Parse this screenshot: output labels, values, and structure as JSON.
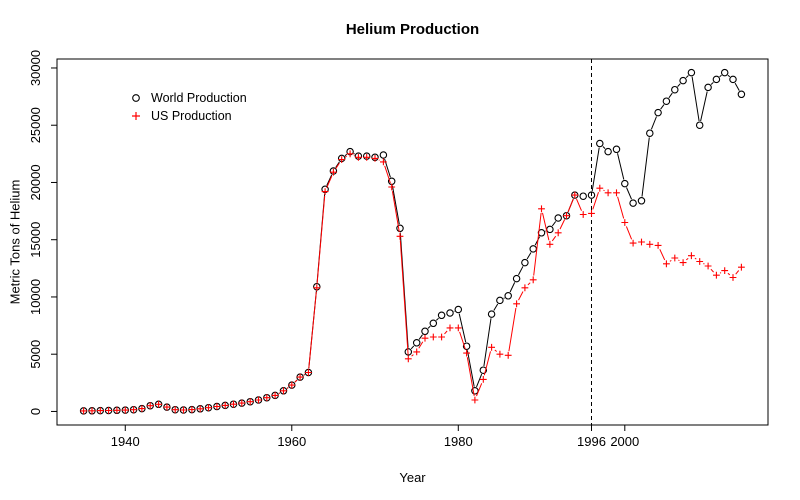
{
  "title": "Helium Production",
  "axes": {
    "x_label": "Year",
    "y_label": "Metric Tons of Helium",
    "x_ticks": [
      1940,
      1960,
      1980,
      1996,
      2000
    ],
    "y_ticks": [
      0,
      5000,
      10000,
      15000,
      20000,
      25000,
      30000
    ],
    "x_range": [
      1931.8,
      2017.2
    ],
    "y_range": [
      -1184,
      30784
    ]
  },
  "reference_line": {
    "x": 1996,
    "style": "dashed",
    "color": "#000000"
  },
  "legend": {
    "items": [
      {
        "label": "World Production",
        "symbol": "circle",
        "color": "#000000"
      },
      {
        "label": "US Production",
        "symbol": "plus",
        "color": "#FF0000"
      }
    ]
  },
  "chart_data": {
    "type": "line",
    "title": "Helium Production",
    "xlabel": "Year",
    "ylabel": "Metric Tons of Helium",
    "xlim": [
      1931.8,
      2017.2
    ],
    "ylim": [
      -1184,
      30784
    ],
    "grid": false,
    "legend_position": "top-left",
    "point_style": "type-b-open-symbols",
    "annotations": [
      {
        "type": "vline",
        "x": 1996,
        "linestyle": "dashed"
      }
    ],
    "x": [
      1935,
      1936,
      1937,
      1938,
      1939,
      1940,
      1941,
      1942,
      1943,
      1944,
      1945,
      1946,
      1947,
      1948,
      1949,
      1950,
      1951,
      1952,
      1953,
      1954,
      1955,
      1956,
      1957,
      1958,
      1959,
      1960,
      1961,
      1962,
      1963,
      1964,
      1965,
      1966,
      1967,
      1968,
      1969,
      1970,
      1971,
      1972,
      1973,
      1974,
      1975,
      1976,
      1977,
      1978,
      1979,
      1980,
      1981,
      1982,
      1983,
      1984,
      1985,
      1986,
      1987,
      1988,
      1989,
      1990,
      1991,
      1992,
      1993,
      1994,
      1995,
      1996,
      1997,
      1998,
      1999,
      2000,
      2001,
      2002,
      2003,
      2004,
      2005,
      2006,
      2007,
      2008,
      2009,
      2010,
      2011,
      2012,
      2013,
      2014
    ],
    "series": [
      {
        "name": "World Production",
        "color": "#000000",
        "symbol": "circle",
        "values": [
          50,
          60,
          70,
          80,
          100,
          120,
          150,
          250,
          500,
          620,
          380,
          150,
          130,
          160,
          230,
          330,
          430,
          530,
          630,
          730,
          850,
          1000,
          1200,
          1400,
          1800,
          2300,
          3000,
          3400,
          10900,
          19400,
          21000,
          22100,
          22700,
          22300,
          22300,
          22200,
          22400,
          20100,
          16000,
          5200,
          6000,
          7000,
          7700,
          8400,
          8600,
          8900,
          5700,
          1800,
          3600,
          8500,
          9700,
          10100,
          11600,
          13000,
          14200,
          15600,
          15900,
          16900,
          17100,
          18900,
          18800,
          18900,
          23400,
          22700,
          22900,
          19900,
          18200,
          18400,
          24300,
          26100,
          27100,
          28100,
          28900,
          29600,
          25000,
          28300,
          29000,
          29600,
          29000,
          27700
        ]
      },
      {
        "name": "US Production",
        "color": "#FF0000",
        "symbol": "plus",
        "values": [
          50,
          60,
          70,
          80,
          100,
          120,
          150,
          250,
          500,
          620,
          380,
          150,
          130,
          160,
          230,
          330,
          430,
          530,
          630,
          730,
          850,
          1000,
          1200,
          1400,
          1800,
          2300,
          3000,
          3400,
          10800,
          19200,
          20900,
          22000,
          22500,
          22200,
          22200,
          22100,
          21800,
          19600,
          15300,
          4600,
          5200,
          6400,
          6500,
          6500,
          7300,
          7300,
          5100,
          1000,
          2800,
          5600,
          5000,
          4900,
          9400,
          10800,
          11500,
          17700,
          14600,
          15600,
          17100,
          18900,
          17200,
          17300,
          19500,
          19100,
          19100,
          16500,
          14700,
          14800,
          14600,
          14500,
          12900,
          13400,
          13000,
          13600,
          13100,
          12700,
          11900,
          12300,
          11700,
          12600
        ]
      }
    ]
  }
}
